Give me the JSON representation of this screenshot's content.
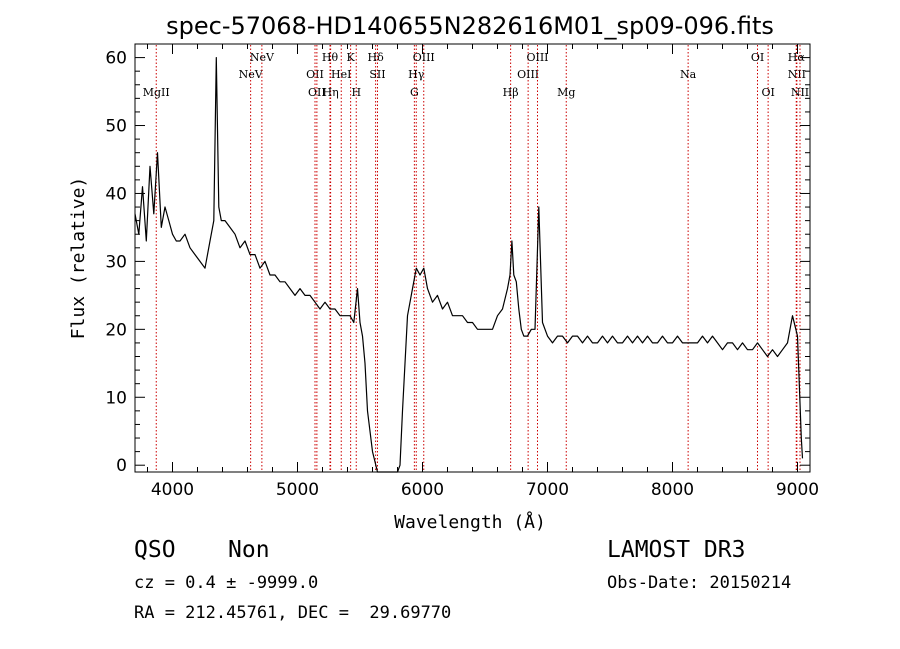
{
  "chart_data": {
    "type": "line",
    "title": "spec-57068-HD140655N282616M01_sp09-096.fits",
    "xlabel": "Wavelength (Å)",
    "ylabel": "Flux (relative)",
    "xlim": [
      3700,
      9100
    ],
    "ylim": [
      -1,
      62
    ],
    "xticks": [
      4000,
      5000,
      6000,
      7000,
      8000,
      9000
    ],
    "yticks": [
      0,
      10,
      20,
      30,
      40,
      50,
      60
    ],
    "grid": false,
    "line_color": "#000000",
    "marker_color": "#cc0000",
    "series": [
      {
        "x": [
          3700,
          3730,
          3760,
          3790,
          3820,
          3850,
          3880,
          3910,
          3940,
          3970,
          4000,
          4030,
          4060,
          4100,
          4140,
          4180,
          4220,
          4260,
          4300,
          4330,
          4350,
          4370,
          4390,
          4420,
          4460,
          4500,
          4540,
          4580,
          4620,
          4660,
          4700,
          4740,
          4780,
          4820,
          4860,
          4900,
          4940,
          4980,
          5020,
          5060,
          5100,
          5140,
          5180,
          5220,
          5260,
          5300,
          5340,
          5380,
          5420,
          5450,
          5480,
          5500,
          5520,
          5540,
          5560,
          5600,
          5640,
          5680,
          5720,
          5760,
          5800,
          5820,
          5840,
          5860,
          5880,
          5900,
          5920,
          5950,
          5980,
          6010,
          6040,
          6080,
          6120,
          6160,
          6200,
          6240,
          6280,
          6320,
          6360,
          6400,
          6440,
          6480,
          6520,
          6560,
          6600,
          6640,
          6680,
          6700,
          6715,
          6730,
          6750,
          6770,
          6790,
          6810,
          6840,
          6870,
          6900,
          6930,
          6960,
          7000,
          7040,
          7080,
          7120,
          7160,
          7200,
          7240,
          7280,
          7320,
          7360,
          7400,
          7440,
          7480,
          7520,
          7560,
          7600,
          7640,
          7680,
          7720,
          7760,
          7800,
          7840,
          7880,
          7920,
          7960,
          8000,
          8040,
          8080,
          8120,
          8160,
          8200,
          8240,
          8280,
          8320,
          8360,
          8400,
          8440,
          8480,
          8520,
          8560,
          8600,
          8640,
          8680,
          8720,
          8760,
          8800,
          8840,
          8880,
          8920,
          8960,
          9000,
          9030,
          9040
        ],
        "y": [
          37,
          34,
          41,
          33,
          44,
          37,
          46,
          35,
          38,
          36,
          34,
          33,
          33,
          34,
          32,
          31,
          30,
          29,
          33,
          36,
          60,
          38,
          36,
          36,
          35,
          34,
          32,
          33,
          31,
          31,
          29,
          30,
          28,
          28,
          27,
          27,
          26,
          25,
          26,
          25,
          25,
          24,
          23,
          24,
          23,
          23,
          22,
          22,
          22,
          21,
          26,
          21,
          19,
          15,
          8,
          2,
          -1,
          -1,
          -1,
          -1,
          -1,
          0,
          8,
          15,
          22,
          24,
          26,
          29,
          28,
          29,
          26,
          24,
          25,
          23,
          24,
          22,
          22,
          22,
          21,
          21,
          20,
          20,
          20,
          20,
          22,
          23,
          26,
          28,
          33,
          28,
          27,
          23,
          20,
          19,
          19,
          20,
          20,
          38,
          21,
          19,
          18,
          19,
          19,
          18,
          19,
          19,
          18,
          19,
          18,
          18,
          19,
          18,
          19,
          18,
          18,
          19,
          18,
          19,
          18,
          19,
          18,
          18,
          19,
          18,
          18,
          19,
          18,
          18,
          18,
          18,
          19,
          18,
          19,
          18,
          17,
          18,
          18,
          17,
          18,
          17,
          17,
          18,
          17,
          16,
          17,
          16,
          17,
          18,
          22,
          19,
          4,
          1
        ]
      }
    ],
    "lines": [
      {
        "name": "MgII",
        "x": 3870,
        "row": 3
      },
      {
        "name": "NeV",
        "x": 4625,
        "row": 2
      },
      {
        "name": "NeV",
        "x": 4715,
        "row": 1
      },
      {
        "name": "OII",
        "x": 5140,
        "row": 2
      },
      {
        "name": "OII",
        "x": 5155,
        "row": 3
      },
      {
        "name": "Hθ",
        "x": 5260,
        "row": 1
      },
      {
        "name": "Hη",
        "x": 5265,
        "row": 3
      },
      {
        "name": "HeI",
        "x": 5350,
        "row": 2
      },
      {
        "name": "K",
        "x": 5425,
        "row": 1
      },
      {
        "name": "H",
        "x": 5470,
        "row": 3
      },
      {
        "name": "Hδ",
        "x": 5625,
        "row": 1
      },
      {
        "name": "SII",
        "x": 5640,
        "row": 2
      },
      {
        "name": "G",
        "x": 5935,
        "row": 3
      },
      {
        "name": "Hγ",
        "x": 5950,
        "row": 2
      },
      {
        "name": "OIII",
        "x": 6010,
        "row": 1
      },
      {
        "name": "Hβ",
        "x": 6705,
        "row": 3
      },
      {
        "name": "OIII",
        "x": 6845,
        "row": 2
      },
      {
        "name": "OIII",
        "x": 6920,
        "row": 1
      },
      {
        "name": "Mg",
        "x": 7150,
        "row": 3
      },
      {
        "name": "Na",
        "x": 8125,
        "row": 2
      },
      {
        "name": "OI",
        "x": 8680,
        "row": 1
      },
      {
        "name": "OI",
        "x": 8765,
        "row": 3
      },
      {
        "name": "Hα",
        "x": 8990,
        "row": 1
      },
      {
        "name": "NII",
        "x": 8995,
        "row": 2
      },
      {
        "name": "NII",
        "x": 9020,
        "row": 3
      }
    ]
  },
  "info": {
    "class": "QSO",
    "subclass": "Non",
    "survey": "LAMOST DR3",
    "cz": "cz = 0.4 ± -9999.0",
    "obs_date": "Obs-Date: 20150214",
    "radec": "RA = 212.45761, DEC =  29.69770"
  }
}
